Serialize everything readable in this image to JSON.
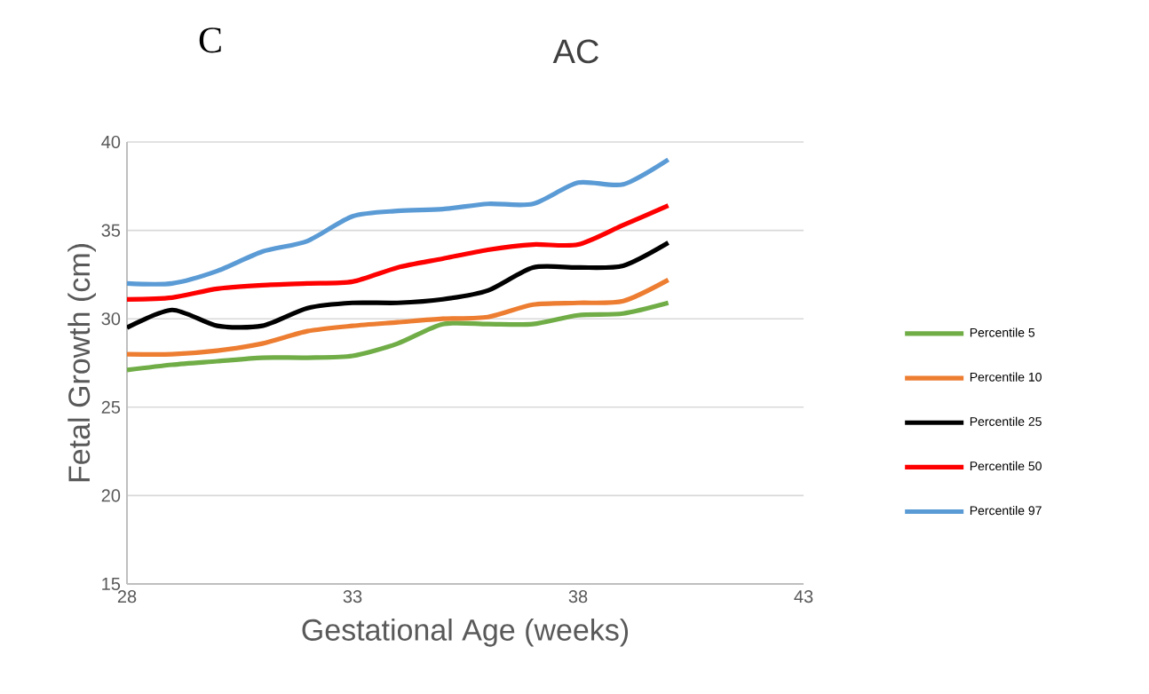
{
  "chart_data": {
    "type": "line",
    "title": "AC",
    "xlabel": "Gestational Age (weeks)",
    "ylabel": "Fetal Growth (cm)",
    "annotations": [
      "C"
    ],
    "x": [
      28,
      29,
      30,
      31,
      32,
      33,
      34,
      35,
      36,
      37,
      38,
      39,
      40
    ],
    "series": [
      {
        "name": "Percentile 5",
        "color": "#70ad47",
        "values": [
          27.1,
          27.4,
          27.6,
          27.8,
          27.8,
          27.9,
          28.6,
          29.7,
          29.7,
          29.7,
          30.2,
          30.3,
          30.9
        ]
      },
      {
        "name": "Percentile 10",
        "color": "#ed7d31",
        "values": [
          28.0,
          28.0,
          28.2,
          28.6,
          29.3,
          29.6,
          29.8,
          30.0,
          30.1,
          30.8,
          30.9,
          31.0,
          32.2
        ]
      },
      {
        "name": "Percentile 25",
        "color": "#000000",
        "values": [
          29.5,
          30.5,
          29.6,
          29.6,
          30.6,
          30.9,
          30.9,
          31.1,
          31.6,
          32.9,
          32.9,
          33.0,
          34.3
        ]
      },
      {
        "name": "Percentile 50",
        "color": "#ff0000",
        "values": [
          31.1,
          31.2,
          31.7,
          31.9,
          32.0,
          32.1,
          32.9,
          33.4,
          33.9,
          34.2,
          34.2,
          35.3,
          36.4
        ]
      },
      {
        "name": "Percentile 97",
        "color": "#5b9bd5",
        "values": [
          32.0,
          32.0,
          32.7,
          33.8,
          34.4,
          35.8,
          36.1,
          36.2,
          36.5,
          36.5,
          37.7,
          37.6,
          39.0
        ]
      }
    ],
    "xlim": [
      28,
      43
    ],
    "ylim": [
      15,
      40
    ],
    "xticks": [
      28,
      33,
      38,
      43
    ],
    "yticks": [
      15,
      20,
      25,
      30,
      35,
      40
    ],
    "grid": "y",
    "legend": "right",
    "line_style": "solid"
  }
}
